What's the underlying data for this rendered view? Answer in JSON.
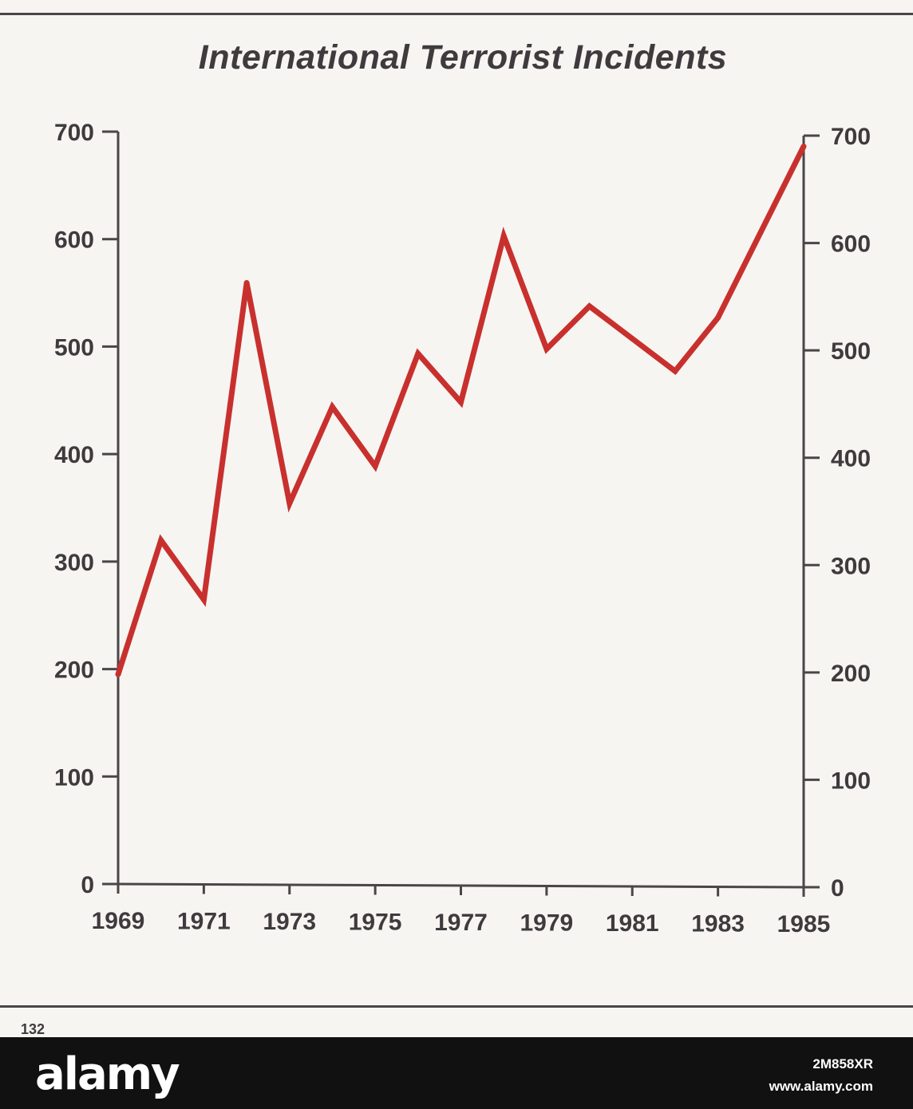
{
  "chart_data": {
    "type": "line",
    "title": "International Terrorist Incidents",
    "xlabel": "",
    "ylabel": "",
    "x": [
      1969,
      1970,
      1971,
      1972,
      1973,
      1974,
      1975,
      1976,
      1977,
      1978,
      1979,
      1980,
      1981,
      1982,
      1983,
      1984,
      1985
    ],
    "series": [
      {
        "values": [
          195,
          320,
          265,
          560,
          355,
          445,
          390,
          495,
          450,
          605,
          500,
          540,
          510,
          480,
          530,
          610,
          690
        ]
      }
    ],
    "xlim": [
      1969,
      1985
    ],
    "ylim": [
      0,
      700
    ],
    "x_ticks": [
      1969,
      1971,
      1973,
      1975,
      1977,
      1979,
      1981,
      1983,
      1985
    ],
    "x_tick_labels": [
      "1969",
      "1971",
      "1973",
      "1975",
      "1977",
      "1979",
      "1981",
      "1983",
      "1985"
    ],
    "y_ticks": [
      0,
      100,
      200,
      300,
      400,
      500,
      600,
      700
    ],
    "y_tick_labels": [
      "0",
      "100",
      "200",
      "300",
      "400",
      "500",
      "600",
      "700"
    ],
    "right_axis": true,
    "grid": false,
    "line_color": "#c8302e",
    "axis_color": "#4a4548"
  },
  "page": {
    "number": "132",
    "background": "#f6f5f1"
  },
  "footer": {
    "brand": "alamy",
    "image_id": "2M858XR",
    "url": "www.alamy.com"
  }
}
